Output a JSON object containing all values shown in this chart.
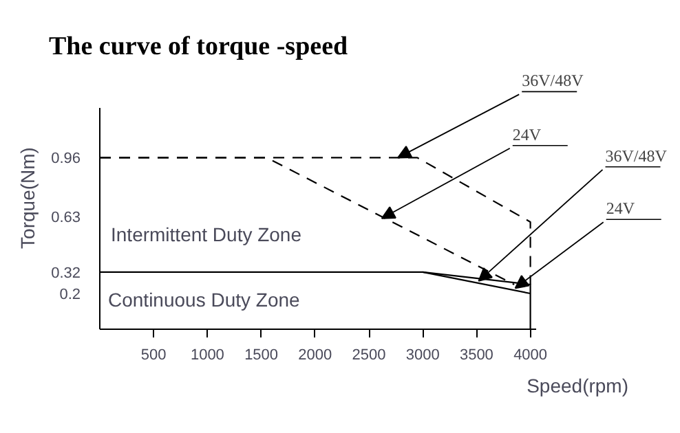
{
  "chart_data": {
    "type": "line",
    "title": "The curve of torque -speed",
    "xlabel": "Speed(rpm)",
    "ylabel": "Torque(Nm)",
    "xlim": [
      0,
      4050
    ],
    "ylim": [
      0,
      1.24
    ],
    "xticks": [
      500,
      1000,
      1500,
      2000,
      2500,
      3000,
      3500,
      4000
    ],
    "yticks": [
      {
        "value": 0.2,
        "label": "0.2"
      },
      {
        "value": 0.32,
        "label": "0.32"
      },
      {
        "value": 0.63,
        "label": "0.63"
      },
      {
        "value": 0.96,
        "label": "0.96"
      }
    ],
    "grid": false,
    "marker": "none",
    "series": [
      {
        "color": "#000000",
        "line_style": "dashed",
        "x": [
          0,
          2950,
          4000,
          4000
        ],
        "values": [
          0.96,
          0.96,
          0.6,
          0.25
        ]
      },
      {
        "color": "#000000",
        "line_style": "dashed",
        "x": [
          0,
          1550,
          3850
        ],
        "values": [
          0.96,
          0.96,
          0.25
        ]
      },
      {
        "color": "#000000",
        "line_style": "solid",
        "x": [
          0,
          3000,
          4000,
          4000
        ],
        "values": [
          0.32,
          0.32,
          0.25,
          0
        ]
      },
      {
        "color": "#000000",
        "line_style": "solid",
        "x": [
          3000,
          4000
        ],
        "values": [
          0.32,
          0.2
        ]
      }
    ],
    "annotations": [
      {
        "text": "36V/48V",
        "x": 2770,
        "y": 0.96
      },
      {
        "text": "24V",
        "x": 2620,
        "y": 0.62
      },
      {
        "text": "36V/48V",
        "x": 3520,
        "y": 0.27
      },
      {
        "text": "24V",
        "x": 3860,
        "y": 0.23
      },
      "Intermittent Duty Zone",
      "Continuous Duty Zone"
    ]
  }
}
